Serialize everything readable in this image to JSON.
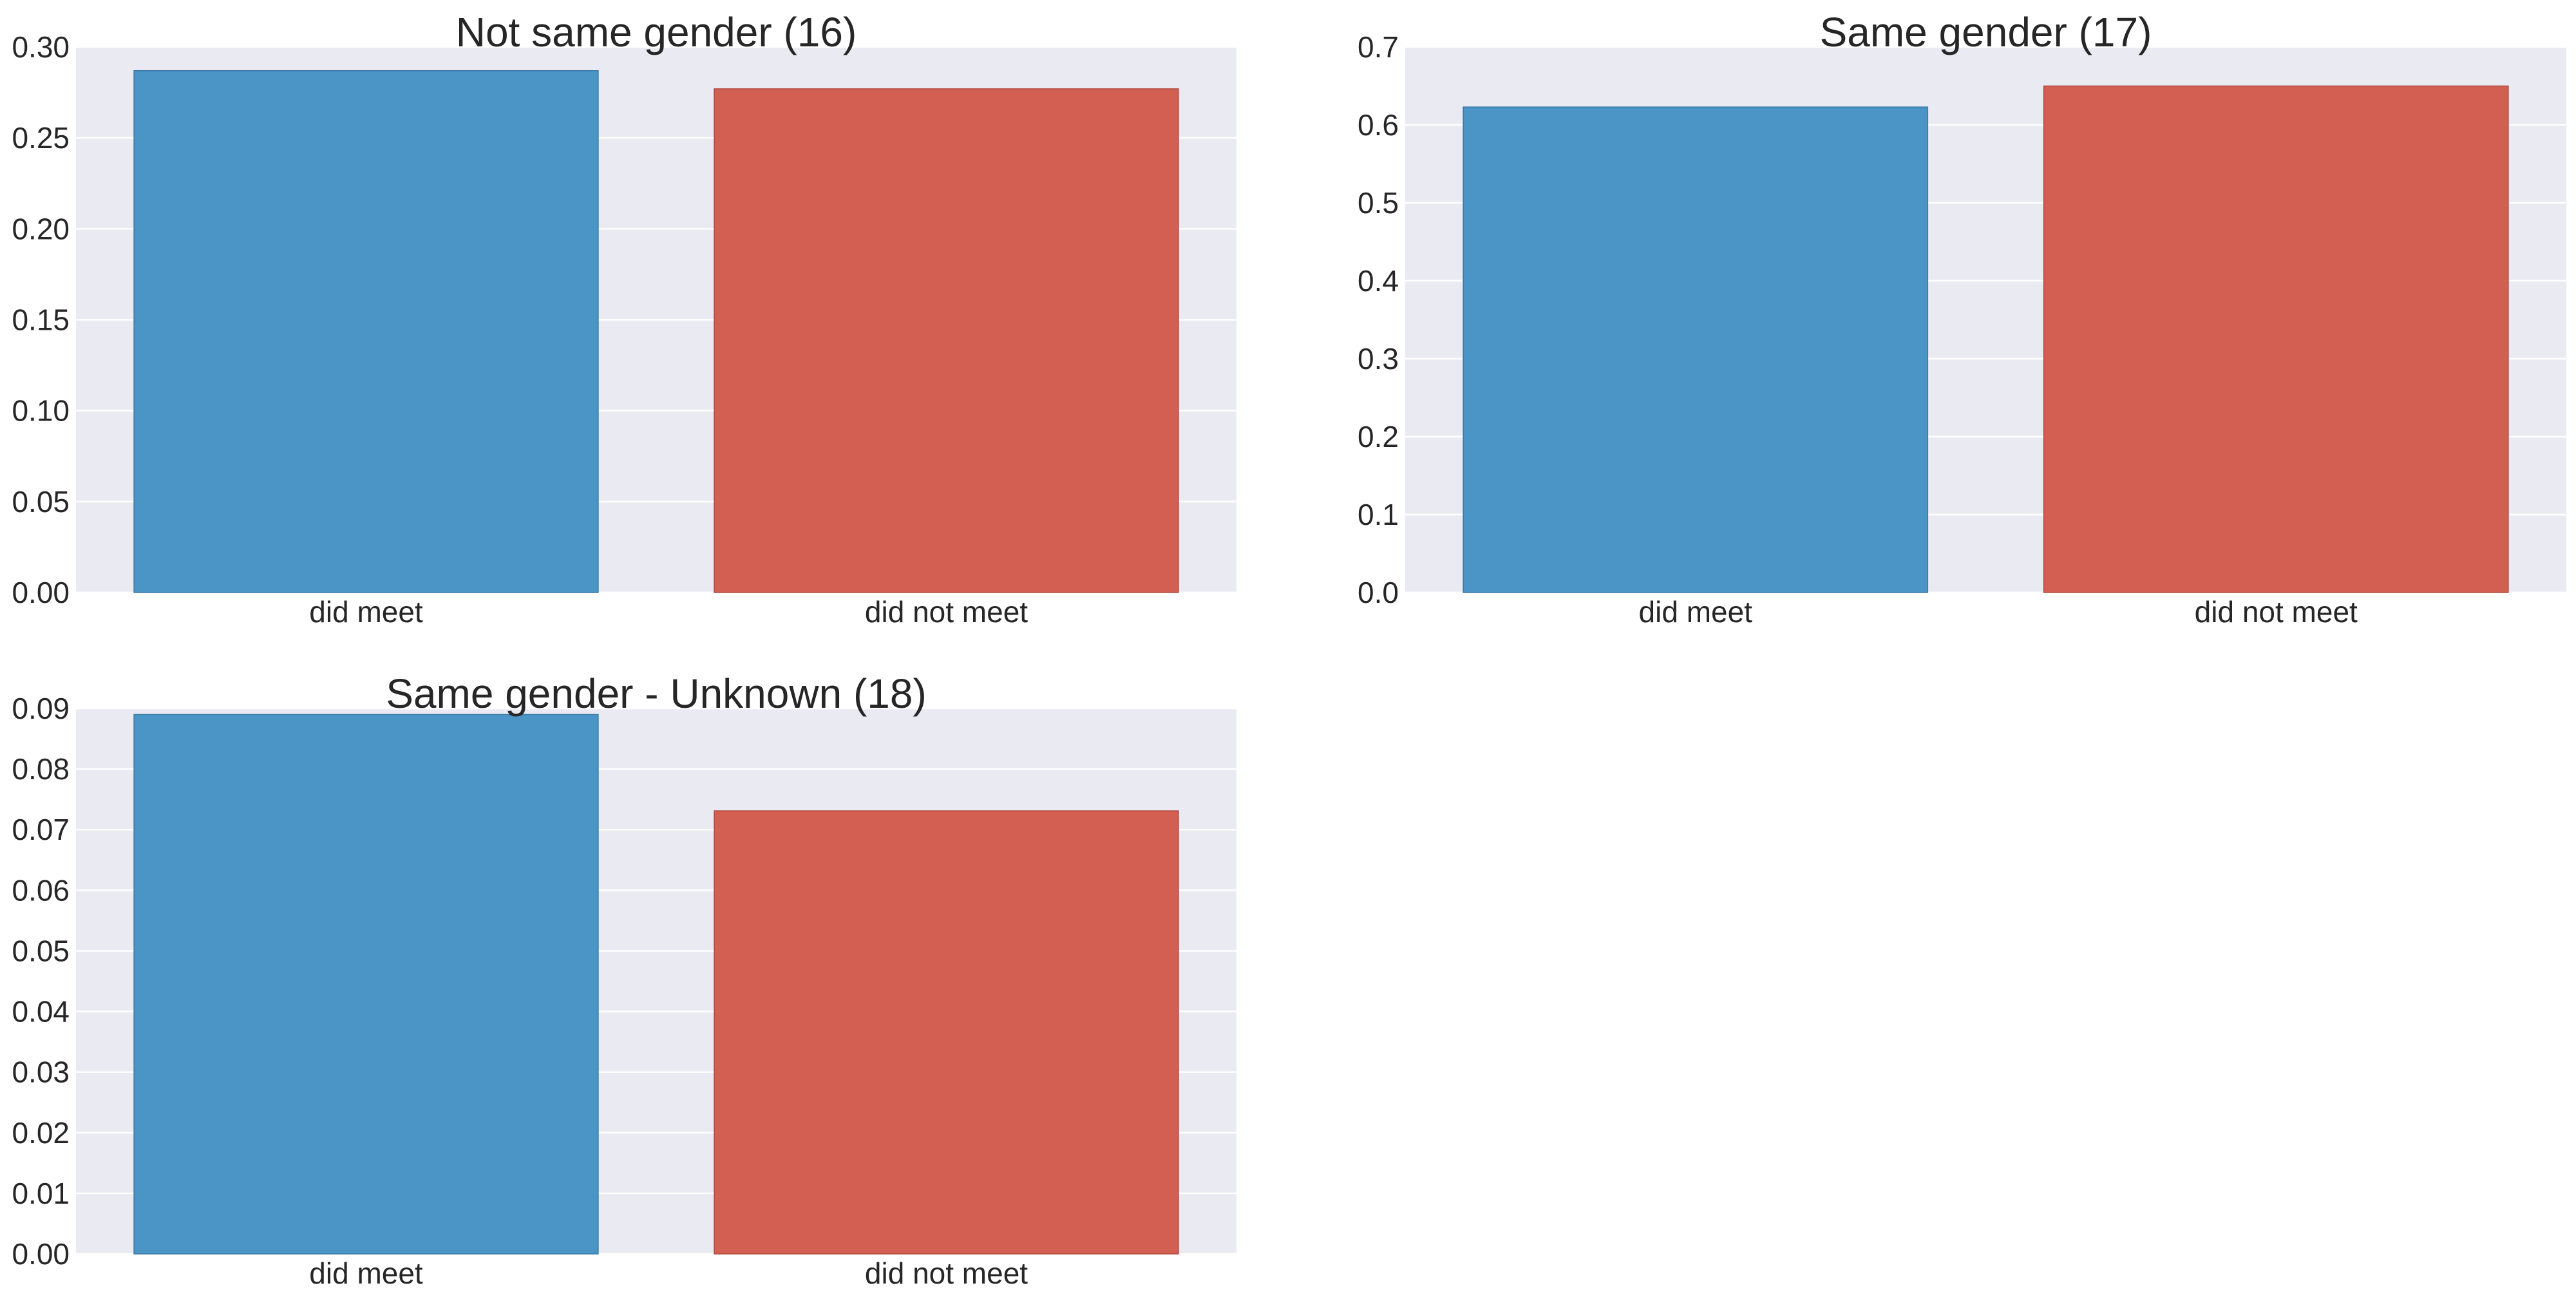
{
  "colors": {
    "did_meet": "#4a94c6",
    "did_not_meet": "#d25f51",
    "plot_background": "#eaeaf2",
    "grid": "#ffffff",
    "text": "#262626"
  },
  "chart_data": [
    {
      "type": "bar",
      "title": "Not same gender (16)",
      "categories": [
        "did meet",
        "did not meet"
      ],
      "values": [
        0.287,
        0.277
      ],
      "ylim": [
        0,
        0.3
      ],
      "yticks": [
        "0.00",
        "0.05",
        "0.10",
        "0.15",
        "0.20",
        "0.25",
        "0.30"
      ],
      "xlabel": "",
      "ylabel": "",
      "grid": "horizontal"
    },
    {
      "type": "bar",
      "title": "Same gender (17)",
      "categories": [
        "did meet",
        "did not meet"
      ],
      "values": [
        0.623,
        0.65
      ],
      "ylim": [
        0,
        0.7
      ],
      "yticks": [
        "0.0",
        "0.1",
        "0.2",
        "0.3",
        "0.4",
        "0.5",
        "0.6",
        "0.7"
      ],
      "xlabel": "",
      "ylabel": "",
      "grid": "horizontal"
    },
    {
      "type": "bar",
      "title": "Same gender - Unknown (18)",
      "categories": [
        "did meet",
        "did not meet"
      ],
      "values": [
        0.089,
        0.0731
      ],
      "ylim": [
        0,
        0.09
      ],
      "yticks": [
        "0.00",
        "0.01",
        "0.02",
        "0.03",
        "0.04",
        "0.05",
        "0.06",
        "0.07",
        "0.08",
        "0.09"
      ],
      "xlabel": "",
      "ylabel": "",
      "grid": "horizontal"
    }
  ]
}
